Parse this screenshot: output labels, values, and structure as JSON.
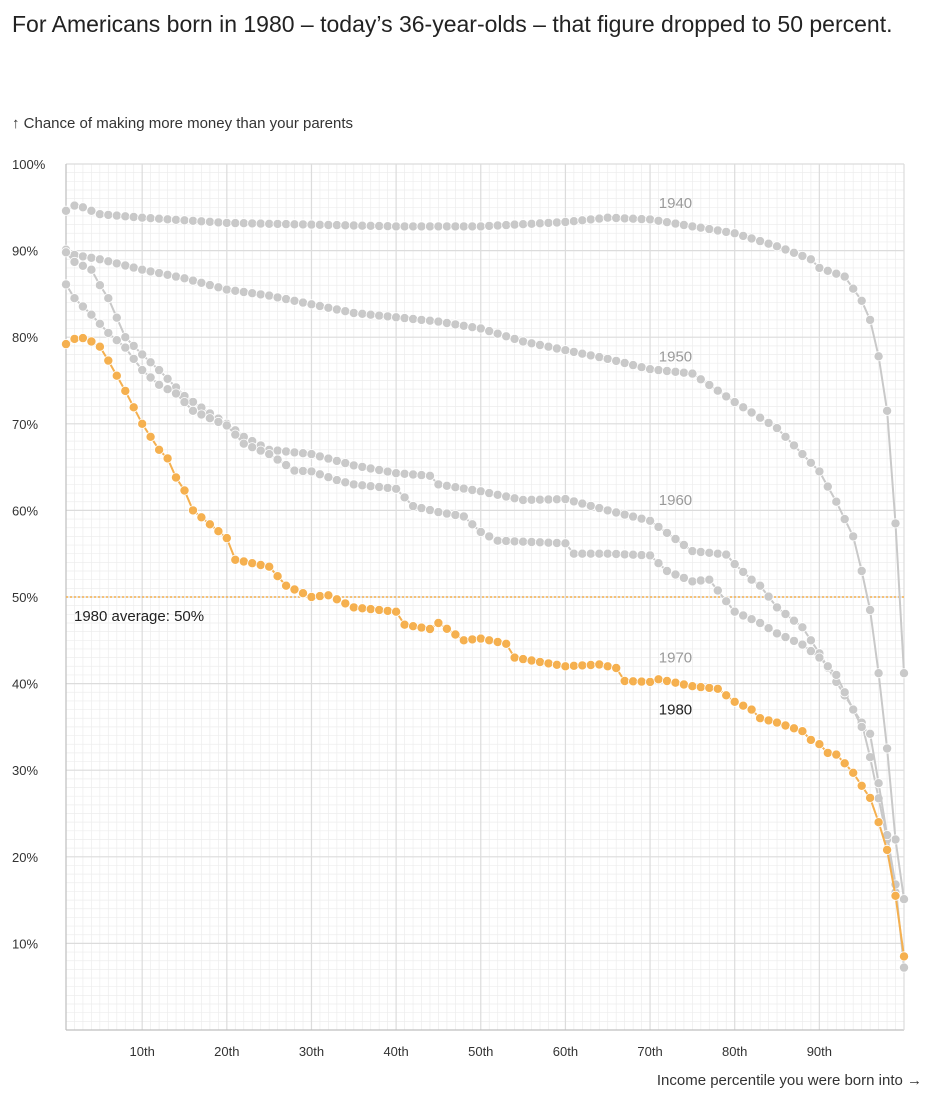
{
  "headline": "For Americans born in 1980 – today’s 36-year-olds –  that figure dropped to 50 percent.",
  "y_axis_title": "↑ Chance of making more money than your parents",
  "x_axis_title": "Income percentile you were born into →",
  "colors": {
    "cohort_gray": "#c9c9c9",
    "cohort_1980": "#f5b04f",
    "grid_major": "#dcdcdc",
    "grid_minor": "#ededed",
    "average_line": "#f5b04f",
    "gray_label": "#9a9a9a",
    "highlight_label": "#222222"
  },
  "chart_data": {
    "type": "line",
    "title": "For Americans born in 1980 – today’s 36-year-olds –  that figure dropped to 50 percent.",
    "ylabel": "↑ Chance of making more money than your parents",
    "xlabel": "Income percentile you were born into →",
    "xlim": [
      1,
      100
    ],
    "ylim": [
      0,
      100
    ],
    "x_ticks": [
      10,
      20,
      30,
      40,
      50,
      60,
      70,
      80,
      90
    ],
    "x_tick_labels": [
      "10th",
      "20th",
      "30th",
      "40th",
      "50th",
      "60th",
      "70th",
      "80th",
      "90th"
    ],
    "y_ticks": [
      10,
      20,
      30,
      40,
      50,
      60,
      70,
      80,
      90,
      100
    ],
    "y_tick_labels": [
      "10%",
      "20%",
      "30%",
      "40%",
      "50%",
      "60%",
      "70%",
      "80%",
      "90%",
      "100%"
    ],
    "grid": true,
    "reference_line": {
      "value": 50,
      "label": "1980 average: 50%"
    },
    "series": [
      {
        "name": "1940",
        "highlight": false,
        "label_at_x": 73,
        "label_value": 95.5,
        "anchors": [
          [
            1,
            94.6
          ],
          [
            2,
            95.2
          ],
          [
            3,
            95
          ],
          [
            5,
            94.2
          ],
          [
            10,
            93.8
          ],
          [
            20,
            93.2
          ],
          [
            30,
            93
          ],
          [
            40,
            92.8
          ],
          [
            50,
            92.8
          ],
          [
            60,
            93.3
          ],
          [
            65,
            93.8
          ],
          [
            70,
            93.6
          ],
          [
            75,
            92.8
          ],
          [
            80,
            92
          ],
          [
            85,
            90.5
          ],
          [
            89,
            89
          ],
          [
            90,
            88
          ],
          [
            93,
            87
          ],
          [
            95,
            84.2
          ],
          [
            96,
            82
          ],
          [
            97,
            77.8
          ],
          [
            98,
            71.5
          ],
          [
            99,
            58.5
          ],
          [
            100,
            41.2
          ]
        ]
      },
      {
        "name": "1950",
        "highlight": false,
        "label_at_x": 73,
        "label_value": 77.8,
        "anchors": [
          [
            1,
            90.1
          ],
          [
            2,
            89.5
          ],
          [
            5,
            89
          ],
          [
            10,
            87.8
          ],
          [
            15,
            86.8
          ],
          [
            20,
            85.5
          ],
          [
            25,
            84.8
          ],
          [
            30,
            83.8
          ],
          [
            35,
            82.8
          ],
          [
            40,
            82.3
          ],
          [
            45,
            81.8
          ],
          [
            50,
            81
          ],
          [
            55,
            79.5
          ],
          [
            60,
            78.5
          ],
          [
            65,
            77.5
          ],
          [
            70,
            76.3
          ],
          [
            75,
            75.8
          ],
          [
            80,
            72.5
          ],
          [
            85,
            69.5
          ],
          [
            88,
            66.5
          ],
          [
            90,
            64.5
          ],
          [
            92,
            61
          ],
          [
            94,
            57
          ],
          [
            95,
            53
          ],
          [
            96,
            48.5
          ],
          [
            97,
            41.2
          ],
          [
            98,
            32.5
          ],
          [
            99,
            22
          ],
          [
            100,
            15.1
          ]
        ]
      },
      {
        "name": "1960",
        "highlight": false,
        "label_at_x": 73,
        "label_value": 61.2,
        "anchors": [
          [
            1,
            89.8
          ],
          [
            2,
            88.7
          ],
          [
            4,
            87.8
          ],
          [
            5,
            86
          ],
          [
            6,
            84.5
          ],
          [
            8,
            80
          ],
          [
            10,
            78
          ],
          [
            12,
            76.2
          ],
          [
            15,
            73.2
          ],
          [
            18,
            71.2
          ],
          [
            20,
            70
          ],
          [
            22,
            68.5
          ],
          [
            25,
            67
          ],
          [
            30,
            66.5
          ],
          [
            35,
            65.2
          ],
          [
            40,
            64.3
          ],
          [
            44,
            64
          ],
          [
            45,
            63
          ],
          [
            50,
            62.2
          ],
          [
            55,
            61.2
          ],
          [
            60,
            61.3
          ],
          [
            65,
            60
          ],
          [
            70,
            58.8
          ],
          [
            75,
            55.3
          ],
          [
            79,
            54.9
          ],
          [
            80,
            53.8
          ],
          [
            82,
            52
          ],
          [
            83,
            51.3
          ],
          [
            85,
            48.8
          ],
          [
            88,
            46.5
          ],
          [
            90,
            43.5
          ],
          [
            92,
            40.2
          ],
          [
            95,
            35.5
          ],
          [
            96,
            31.5
          ],
          [
            98,
            22
          ],
          [
            99,
            15.9
          ]
        ]
      },
      {
        "name": "1970",
        "highlight": false,
        "label_at_x": 73,
        "label_value": 43,
        "anchors": [
          [
            1,
            86.1
          ],
          [
            2,
            84.5
          ],
          [
            4,
            82.6
          ],
          [
            6,
            80.5
          ],
          [
            8,
            78.8
          ],
          [
            10,
            76.2
          ],
          [
            12,
            74.5
          ],
          [
            14,
            73.5
          ],
          [
            16,
            71.5
          ],
          [
            20,
            69.8
          ],
          [
            22,
            67.7
          ],
          [
            25,
            66.5
          ],
          [
            28,
            64.6
          ],
          [
            30,
            64.5
          ],
          [
            33,
            63.5
          ],
          [
            35,
            63
          ],
          [
            40,
            62.5
          ],
          [
            42,
            60.5
          ],
          [
            45,
            59.8
          ],
          [
            48,
            59.3
          ],
          [
            50,
            57.5
          ],
          [
            52,
            56.5
          ],
          [
            60,
            56.2
          ],
          [
            61,
            55
          ],
          [
            65,
            55
          ],
          [
            70,
            54.8
          ],
          [
            72,
            53
          ],
          [
            75,
            51.8
          ],
          [
            77,
            52
          ],
          [
            79,
            49.5
          ],
          [
            80,
            48.3
          ],
          [
            83,
            47
          ],
          [
            85,
            45.8
          ],
          [
            88,
            44.5
          ],
          [
            90,
            43
          ],
          [
            92,
            41
          ],
          [
            94,
            37
          ],
          [
            95,
            35
          ],
          [
            96,
            34.2
          ],
          [
            97,
            28.5
          ],
          [
            98,
            22.5
          ],
          [
            99,
            16.8
          ],
          [
            100,
            7.2
          ]
        ]
      },
      {
        "name": "1980",
        "highlight": true,
        "label_at_x": 73,
        "label_value": 37,
        "anchors": [
          [
            1,
            79.2
          ],
          [
            2,
            79.8
          ],
          [
            3,
            79.9
          ],
          [
            4,
            79.5
          ],
          [
            5,
            78.9
          ],
          [
            6,
            77.3
          ],
          [
            8,
            73.8
          ],
          [
            10,
            70
          ],
          [
            12,
            67
          ],
          [
            13,
            66
          ],
          [
            14,
            63.8
          ],
          [
            15,
            62.3
          ],
          [
            16,
            60
          ],
          [
            20,
            56.8
          ],
          [
            21,
            54.3
          ],
          [
            25,
            53.5
          ],
          [
            27,
            51.3
          ],
          [
            30,
            50
          ],
          [
            32,
            50.2
          ],
          [
            35,
            48.8
          ],
          [
            40,
            48.3
          ],
          [
            41,
            46.8
          ],
          [
            44,
            46.3
          ],
          [
            45,
            47
          ],
          [
            48,
            45
          ],
          [
            50,
            45.2
          ],
          [
            53,
            44.6
          ],
          [
            54,
            43
          ],
          [
            60,
            42
          ],
          [
            64,
            42.2
          ],
          [
            66,
            41.8
          ],
          [
            67,
            40.3
          ],
          [
            70,
            40.2
          ],
          [
            71,
            40.5
          ],
          [
            75,
            39.7
          ],
          [
            78,
            39.4
          ],
          [
            80,
            37.9
          ],
          [
            82,
            37
          ],
          [
            83,
            36
          ],
          [
            85,
            35.5
          ],
          [
            88,
            34.5
          ],
          [
            89,
            33.5
          ],
          [
            90,
            33
          ],
          [
            91,
            32
          ],
          [
            92,
            31.8
          ],
          [
            93,
            30.8
          ],
          [
            94,
            29.7
          ],
          [
            95,
            28.2
          ],
          [
            96,
            26.8
          ],
          [
            97,
            24
          ],
          [
            98,
            20.8
          ],
          [
            99,
            15.5
          ],
          [
            100,
            8.5
          ]
        ]
      }
    ]
  }
}
